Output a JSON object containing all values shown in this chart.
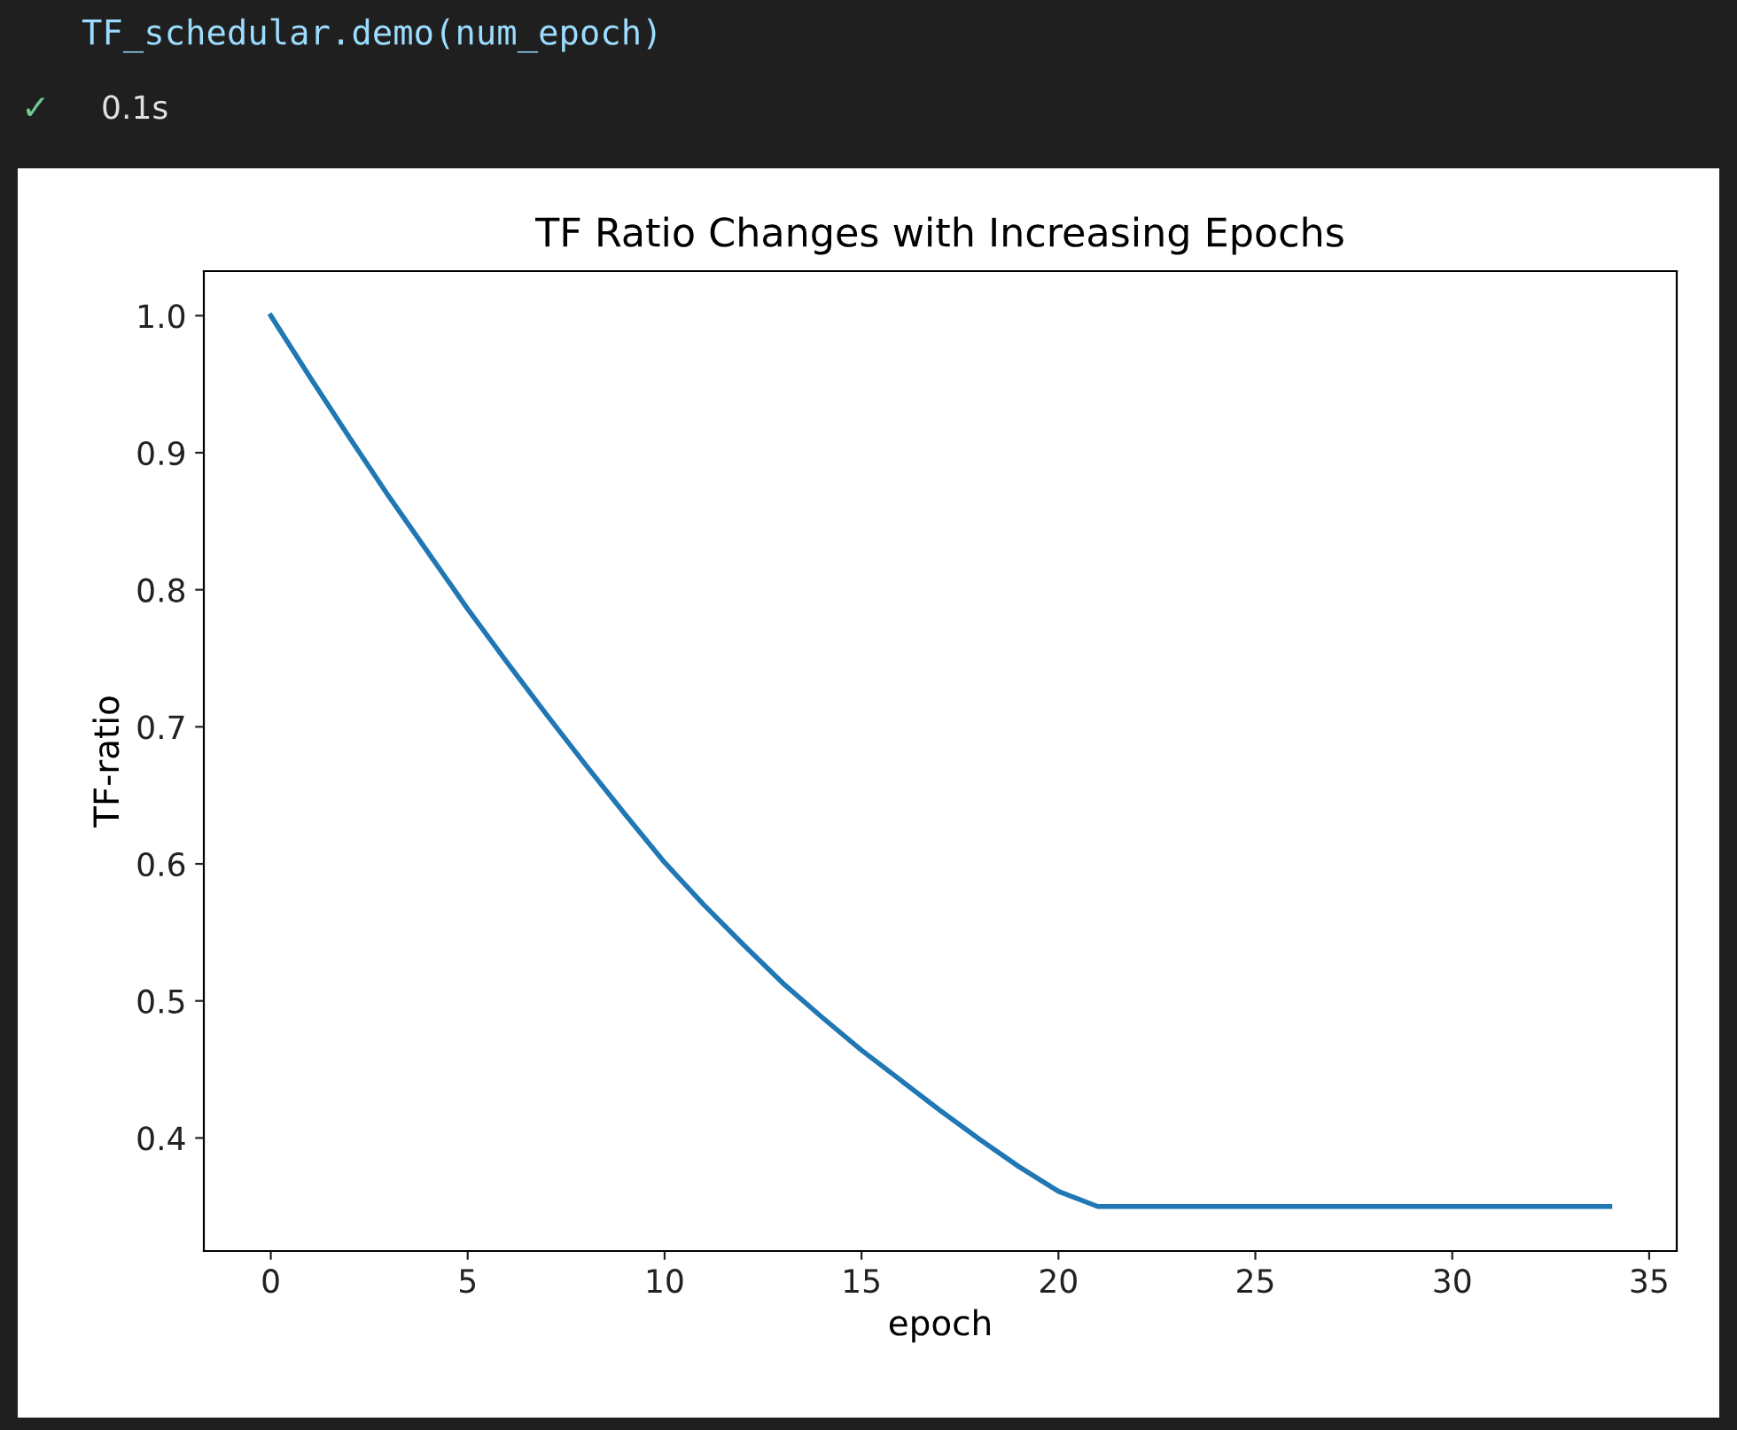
{
  "chart_data": {
    "type": "line",
    "title": "TF Ratio Changes with Increasing Epochs",
    "xlabel": "epoch",
    "ylabel": "TF-ratio",
    "annotations": [
      "TF_schedular.demo(num_epoch)",
      "✓",
      "0.1s"
    ],
    "x": [
      0,
      1,
      2,
      3,
      4,
      5,
      6,
      7,
      8,
      9,
      10,
      11,
      12,
      13,
      14,
      15,
      16,
      17,
      18,
      19,
      20,
      21,
      22,
      23,
      24,
      25,
      26,
      27,
      28,
      29,
      30,
      31,
      32,
      33,
      34
    ],
    "series": [
      {
        "color": "#1f77b4",
        "values": [
          1.0,
          0.955,
          0.911,
          0.868,
          0.827,
          0.786,
          0.747,
          0.709,
          0.672,
          0.636,
          0.601,
          0.57,
          0.541,
          0.513,
          0.488,
          0.464,
          0.442,
          0.42,
          0.399,
          0.379,
          0.361,
          0.35,
          0.35,
          0.35,
          0.35,
          0.35,
          0.35,
          0.35,
          0.35,
          0.35,
          0.35,
          0.35,
          0.35,
          0.35,
          0.35
        ]
      }
    ],
    "xlim": [
      -1.7,
      35.7
    ],
    "ylim": [
      0.3175,
      1.0325
    ],
    "xticks": [
      0,
      5,
      10,
      15,
      20,
      25,
      30,
      35
    ],
    "yticks": [
      0.4,
      0.5,
      0.6,
      0.7,
      0.8,
      0.9,
      {
        "value": 1.0,
        "label": "1.0"
      }
    ],
    "grid": false,
    "marker": "none",
    "line_style": "solid"
  }
}
